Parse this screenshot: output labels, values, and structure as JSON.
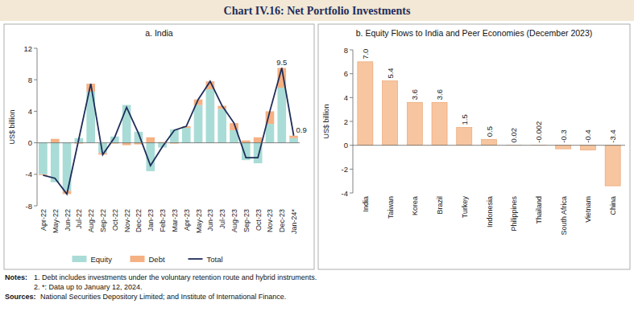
{
  "title": "Chart IV.16: Net Portfolio Investments",
  "notes_title": "Notes:",
  "notes": [
    "1. Debt includes investments under the voluntary retention route and hybrid instruments.",
    "2. *: Data up to January 12, 2024."
  ],
  "sources_title": "Sources:",
  "sources": "National Securities Depository Limited; and Institute of International Finance.",
  "chart_data": [
    {
      "type": "bar",
      "title": "a. India",
      "ylabel": "US$ billion",
      "stacked": true,
      "legend": "bottom",
      "categories": [
        "Apr-22",
        "May-22",
        "Jun-22",
        "Jul-22",
        "Aug-22",
        "Sep-22",
        "Oct-22",
        "Nov-22",
        "Dec-22",
        "Jan-23",
        "Feb-23",
        "Mar-23",
        "Apr-23",
        "May-23",
        "Jun-23",
        "Jul-23",
        "Aug-23",
        "Sep-23",
        "Oct-23",
        "Nov-23",
        "Dec-23",
        "Jan-24*"
      ],
      "series": [
        {
          "name": "Equity",
          "type": "bar",
          "color": "#a9dcd6",
          "values": [
            -4.0,
            -5.0,
            -6.1,
            0.6,
            6.5,
            -1.3,
            0.8,
            4.8,
            1.4,
            -3.6,
            -0.6,
            1.7,
            1.9,
            4.8,
            6.8,
            4.3,
            1.6,
            -2.2,
            -2.6,
            2.4,
            7.0,
            0.6
          ]
        },
        {
          "name": "Debt",
          "type": "bar",
          "color": "#f5b183",
          "values": [
            -0.1,
            0.5,
            -0.4,
            -0.1,
            1.0,
            -0.2,
            -0.1,
            -0.3,
            -0.2,
            0.7,
            0.1,
            -0.1,
            0.2,
            0.7,
            1.0,
            0.4,
            0.9,
            0.3,
            0.7,
            1.6,
            2.5,
            0.3
          ]
        },
        {
          "name": "Total",
          "type": "line",
          "color": "#1f2d5a",
          "line_style": "solid",
          "values": [
            -4.1,
            -4.5,
            -6.5,
            0.5,
            7.5,
            -1.5,
            0.7,
            4.5,
            1.2,
            -2.9,
            -0.5,
            1.6,
            2.1,
            5.5,
            7.8,
            4.7,
            2.5,
            -1.9,
            -1.9,
            4.0,
            9.5,
            0.9
          ],
          "value_labels": [
            null,
            null,
            null,
            null,
            null,
            null,
            null,
            null,
            null,
            null,
            null,
            null,
            null,
            null,
            null,
            null,
            null,
            null,
            null,
            null,
            "9.5",
            "0.9"
          ]
        }
      ],
      "ylim": [
        -8,
        12
      ],
      "yticks": [
        -8,
        -4,
        0,
        4,
        8,
        12
      ]
    },
    {
      "type": "bar",
      "title": "b. Equity Flows to India and Peer Economies (December 2023)",
      "ylabel": "US$ billion",
      "categories": [
        "India",
        "Taiwan",
        "Korea",
        "Brazil",
        "Turkey",
        "Indonesia",
        "Philippines",
        "Thailand",
        "South Africa",
        "Vietnam",
        "China"
      ],
      "values": [
        7.0,
        5.4,
        3.6,
        3.6,
        1.5,
        0.5,
        0.02,
        -0.002,
        -0.3,
        -0.4,
        -3.4
      ],
      "value_labels": [
        "7.0",
        "5.4",
        "3.6",
        "3.6",
        "1.5",
        "0.5",
        "0.02",
        "-0.002",
        "-0.3",
        "-0.4",
        "-3.4"
      ],
      "data_labels": true,
      "color": "#f7c59f",
      "ylim": [
        -4,
        8
      ],
      "yticks": [
        -4,
        -2,
        0,
        2,
        4,
        6,
        8
      ]
    }
  ]
}
